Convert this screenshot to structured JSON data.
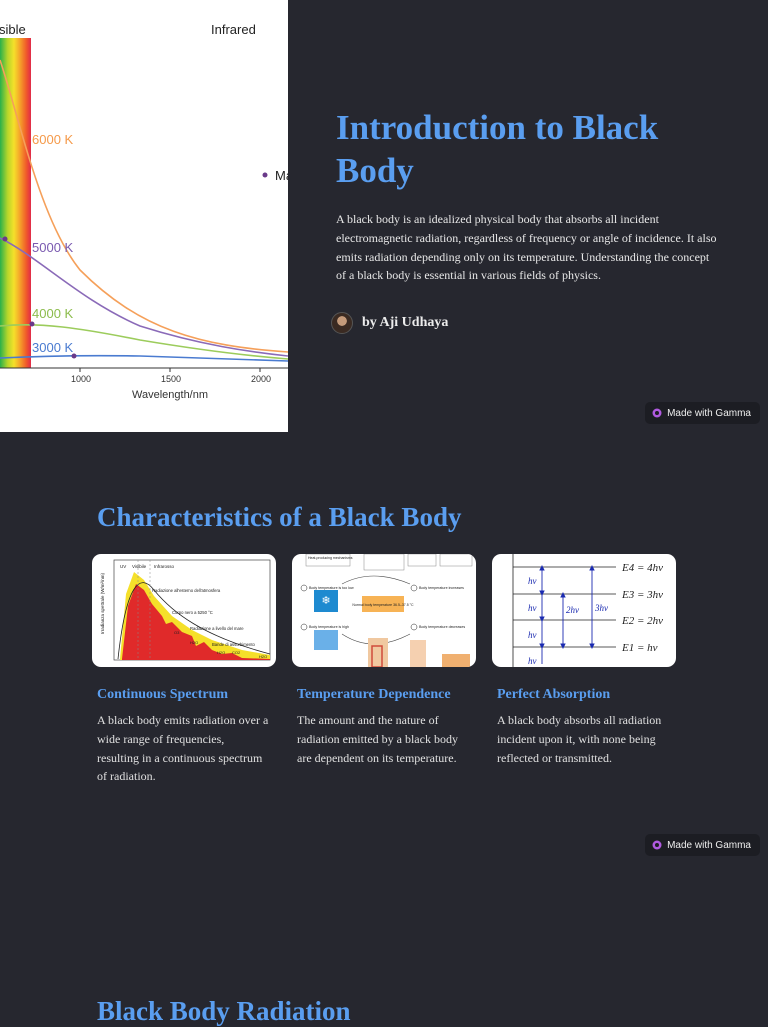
{
  "slide1": {
    "title": "Introduction to Black Body",
    "description": "A black body is an idealized physical body that absorbs all incident electromagnetic radiation, regardless of frequency or angle of incidence. It also emits radiation depending only on its temperature. Understanding the concept of a black body is essential in various fields of physics.",
    "author": "by Aji Udhaya",
    "figure": {
      "region_labels": [
        "sible",
        "Infrared"
      ],
      "curve_labels": [
        "6000 K",
        "5000 K",
        "4000 K",
        "3000 K"
      ],
      "marker_label": "Ma",
      "x_ticks": [
        "1000",
        "1500",
        "2000"
      ],
      "x_label": "Wavelength/nm",
      "colors": {
        "6000K": "#f5a05a",
        "5000K": "#8a6ab8",
        "4000K": "#9ccc5c",
        "3000K": "#4a7bd0"
      }
    }
  },
  "badge": {
    "label": "Made with Gamma"
  },
  "slide2": {
    "title": "Characteristics of a Black Body",
    "cards": [
      {
        "title": "Continuous Spectrum",
        "text": "A black body emits radiation over a wide range of frequencies, resulting in a continuous spectrum of radiation."
      },
      {
        "title": "Temperature Dependence",
        "text": "The amount and the nature of radiation emitted by a black body are dependent on its temperature."
      },
      {
        "title": "Perfect Absorption",
        "text": "A black body absorbs all radiation incident upon it, with none being reflected or transmitted."
      }
    ],
    "card1_image": {
      "legend": [
        "UV",
        "Visibile",
        "Infrarosso"
      ],
      "notes": [
        "Radiazione all'esterno dell'atmosfera",
        "Corpo nero a 5250 °C",
        "Radiazione a livello del mare",
        "Bande di assorbimento"
      ],
      "species": [
        "O3",
        "H2O",
        "O2",
        "H2O",
        "CO2",
        "H2O"
      ],
      "y_label": "Irradianza spettrale (W/m²/nm)"
    },
    "card2_image": {
      "boxes": [
        "Heat-producing mechanisms",
        "reducing heat loss to the air. Blood flow to the digestive system decreases.",
        "aerobic respiration in the muscles, releasing heat",
        "metabolic heat production"
      ],
      "steps": [
        "Body temperature is too low",
        "Body temperature increases",
        "Body temperature is high",
        "Body temperature decreases"
      ],
      "center": "Normal body temperature 36.5–37.5 °C"
    },
    "card3_image": {
      "levels": [
        "E4 = 4hν",
        "E3 = 3hν",
        "E2 = 2hν",
        "E1 = hν"
      ],
      "quanta": [
        "hν",
        "hν",
        "hν",
        "hν",
        "2hν",
        "3hν"
      ]
    }
  },
  "slide3": {
    "title": "Black Body Radiation"
  }
}
